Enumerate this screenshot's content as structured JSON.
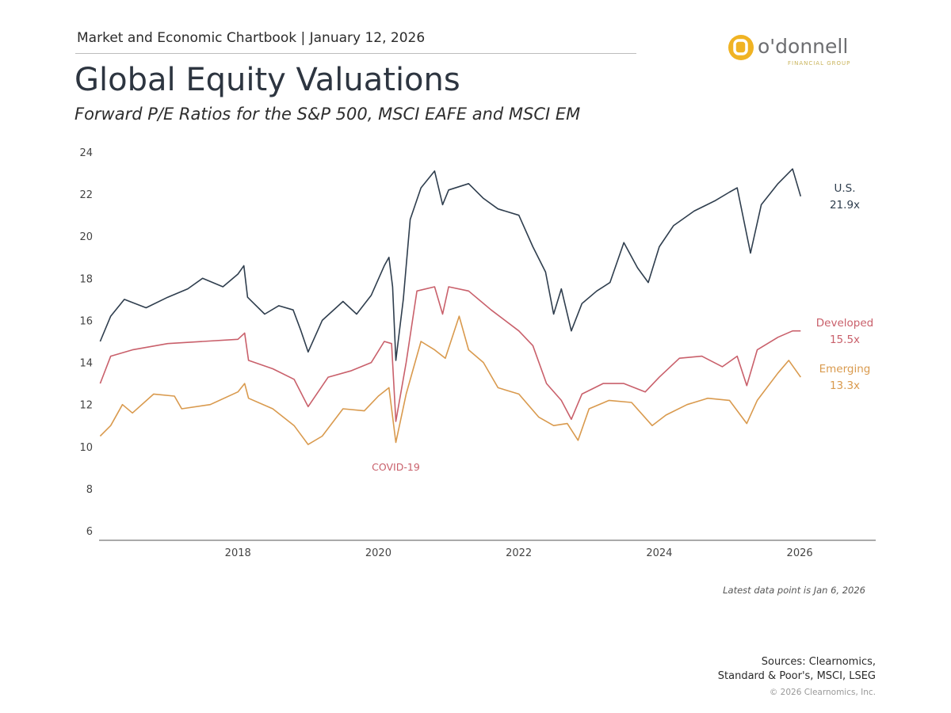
{
  "header": {
    "chartbook": "Market and Economic Chartbook | January 12, 2026"
  },
  "logo": {
    "text": "o'donnell",
    "subtext": "FINANCIAL GROUP",
    "colors": {
      "mark": "#f0b323",
      "text": "#6d6e71",
      "subtext": "#c9b35a"
    }
  },
  "title": "Global Equity Valuations",
  "subtitle": "Forward P/E Ratios for the S&P 500, MSCI EAFE and MSCI EM",
  "footer": {
    "latest": "Latest data point is Jan 6, 2026",
    "sources_line1": "Sources: Clearnomics,",
    "sources_line2": "Standard & Poor's, MSCI, LSEG",
    "copyright": "© 2026 Clearnomics, Inc."
  },
  "chart_data": {
    "type": "line",
    "title": "",
    "xlabel": "",
    "ylabel": "",
    "ylim": [
      6,
      24
    ],
    "xlim": [
      "2016-01-01",
      "2027-01-31"
    ],
    "yticks": [
      "6",
      "8",
      "10",
      "12",
      "14",
      "16",
      "18",
      "20",
      "22",
      "24"
    ],
    "xticks": [
      "2018",
      "2020",
      "2022",
      "2024",
      "2026"
    ],
    "grid": false,
    "annotations": [
      {
        "text": "COVID-19",
        "x": "2020-04-01",
        "color": "#c9606b"
      }
    ],
    "series": [
      {
        "name": "U.S.",
        "end_label": "21.9x",
        "color": "#2f3e4e",
        "points": [
          [
            "2016-01-15",
            15.0
          ],
          [
            "2016-03-10",
            16.2
          ],
          [
            "2016-05-20",
            17.0
          ],
          [
            "2016-09-10",
            16.6
          ],
          [
            "2017-01-01",
            17.1
          ],
          [
            "2017-04-15",
            17.5
          ],
          [
            "2017-07-01",
            18.0
          ],
          [
            "2017-10-15",
            17.6
          ],
          [
            "2018-01-01",
            18.2
          ],
          [
            "2018-02-01",
            18.6
          ],
          [
            "2018-02-20",
            17.1
          ],
          [
            "2018-05-20",
            16.3
          ],
          [
            "2018-08-01",
            16.7
          ],
          [
            "2018-10-15",
            16.5
          ],
          [
            "2018-11-25",
            15.5
          ],
          [
            "2019-01-01",
            14.5
          ],
          [
            "2019-03-15",
            16.0
          ],
          [
            "2019-07-01",
            16.9
          ],
          [
            "2019-09-10",
            16.3
          ],
          [
            "2019-11-25",
            17.2
          ],
          [
            "2020-02-01",
            18.6
          ],
          [
            "2020-02-25",
            19.0
          ],
          [
            "2020-03-15",
            17.6
          ],
          [
            "2020-04-01",
            14.1
          ],
          [
            "2020-05-10",
            17.0
          ],
          [
            "2020-06-15",
            20.8
          ],
          [
            "2020-08-10",
            22.3
          ],
          [
            "2020-10-20",
            23.1
          ],
          [
            "2020-12-01",
            21.5
          ],
          [
            "2021-01-01",
            22.2
          ],
          [
            "2021-04-15",
            22.5
          ],
          [
            "2021-07-01",
            21.8
          ],
          [
            "2021-09-15",
            21.3
          ],
          [
            "2022-01-01",
            21.0
          ],
          [
            "2022-03-15",
            19.5
          ],
          [
            "2022-05-20",
            18.3
          ],
          [
            "2022-07-01",
            16.3
          ],
          [
            "2022-08-10",
            17.5
          ],
          [
            "2022-10-01",
            15.5
          ],
          [
            "2022-11-25",
            16.8
          ],
          [
            "2023-02-10",
            17.4
          ],
          [
            "2023-04-20",
            17.8
          ],
          [
            "2023-07-01",
            19.7
          ],
          [
            "2023-09-10",
            18.5
          ],
          [
            "2023-11-05",
            17.8
          ],
          [
            "2024-01-01",
            19.5
          ],
          [
            "2024-03-15",
            20.5
          ],
          [
            "2024-07-01",
            21.2
          ],
          [
            "2024-10-20",
            21.7
          ],
          [
            "2025-01-01",
            22.1
          ],
          [
            "2025-02-10",
            22.3
          ],
          [
            "2025-04-20",
            19.2
          ],
          [
            "2025-06-15",
            21.5
          ],
          [
            "2025-09-10",
            22.5
          ],
          [
            "2025-11-25",
            23.2
          ],
          [
            "2026-01-06",
            21.9
          ]
        ]
      },
      {
        "name": "Developed",
        "end_label": "15.5x",
        "color": "#c9606b",
        "points": [
          [
            "2016-01-15",
            13.0
          ],
          [
            "2016-03-10",
            14.3
          ],
          [
            "2016-07-01",
            14.6
          ],
          [
            "2017-01-01",
            14.9
          ],
          [
            "2017-07-01",
            15.0
          ],
          [
            "2018-01-01",
            15.1
          ],
          [
            "2018-02-05",
            15.4
          ],
          [
            "2018-02-25",
            14.1
          ],
          [
            "2018-07-01",
            13.7
          ],
          [
            "2018-10-20",
            13.2
          ],
          [
            "2019-01-01",
            11.9
          ],
          [
            "2019-04-15",
            13.3
          ],
          [
            "2019-08-10",
            13.6
          ],
          [
            "2019-11-25",
            14.0
          ],
          [
            "2020-02-01",
            15.0
          ],
          [
            "2020-03-10",
            14.9
          ],
          [
            "2020-04-01",
            11.2
          ],
          [
            "2020-05-25",
            14.0
          ],
          [
            "2020-07-20",
            17.4
          ],
          [
            "2020-10-20",
            17.6
          ],
          [
            "2020-12-01",
            16.3
          ],
          [
            "2021-01-01",
            17.6
          ],
          [
            "2021-04-15",
            17.4
          ],
          [
            "2021-08-10",
            16.5
          ],
          [
            "2022-01-01",
            15.5
          ],
          [
            "2022-03-15",
            14.8
          ],
          [
            "2022-05-25",
            13.0
          ],
          [
            "2022-08-10",
            12.2
          ],
          [
            "2022-10-01",
            11.3
          ],
          [
            "2022-11-25",
            12.5
          ],
          [
            "2023-03-15",
            13.0
          ],
          [
            "2023-07-01",
            13.0
          ],
          [
            "2023-10-20",
            12.6
          ],
          [
            "2024-01-01",
            13.3
          ],
          [
            "2024-04-15",
            14.2
          ],
          [
            "2024-08-10",
            14.3
          ],
          [
            "2024-11-25",
            13.8
          ],
          [
            "2025-02-10",
            14.3
          ],
          [
            "2025-04-01",
            12.9
          ],
          [
            "2025-05-25",
            14.6
          ],
          [
            "2025-09-10",
            15.2
          ],
          [
            "2025-11-25",
            15.5
          ],
          [
            "2026-01-06",
            15.5
          ]
        ]
      },
      {
        "name": "Emerging",
        "end_label": "13.3x",
        "color": "#d99a4e",
        "points": [
          [
            "2016-01-15",
            10.5
          ],
          [
            "2016-03-10",
            11.0
          ],
          [
            "2016-05-10",
            12.0
          ],
          [
            "2016-07-01",
            11.6
          ],
          [
            "2016-10-20",
            12.5
          ],
          [
            "2017-02-05",
            12.4
          ],
          [
            "2017-03-15",
            11.8
          ],
          [
            "2017-08-10",
            12.0
          ],
          [
            "2018-01-01",
            12.6
          ],
          [
            "2018-02-05",
            13.0
          ],
          [
            "2018-02-25",
            12.3
          ],
          [
            "2018-07-01",
            11.8
          ],
          [
            "2018-10-20",
            11.0
          ],
          [
            "2019-01-01",
            10.1
          ],
          [
            "2019-03-15",
            10.5
          ],
          [
            "2019-07-01",
            11.8
          ],
          [
            "2019-10-20",
            11.7
          ],
          [
            "2020-01-01",
            12.4
          ],
          [
            "2020-02-25",
            12.8
          ],
          [
            "2020-04-01",
            10.2
          ],
          [
            "2020-05-25",
            12.5
          ],
          [
            "2020-08-10",
            15.0
          ],
          [
            "2020-10-20",
            14.6
          ],
          [
            "2020-12-15",
            14.2
          ],
          [
            "2021-02-25",
            16.2
          ],
          [
            "2021-04-15",
            14.6
          ],
          [
            "2021-07-01",
            14.0
          ],
          [
            "2021-09-15",
            12.8
          ],
          [
            "2022-01-01",
            12.5
          ],
          [
            "2022-04-15",
            11.4
          ],
          [
            "2022-07-01",
            11.0
          ],
          [
            "2022-09-10",
            11.1
          ],
          [
            "2022-11-05",
            10.3
          ],
          [
            "2023-01-01",
            11.8
          ],
          [
            "2023-04-15",
            12.2
          ],
          [
            "2023-08-10",
            12.1
          ],
          [
            "2023-11-25",
            11.0
          ],
          [
            "2024-02-05",
            11.5
          ],
          [
            "2024-05-25",
            12.0
          ],
          [
            "2024-09-10",
            12.3
          ],
          [
            "2025-01-01",
            12.2
          ],
          [
            "2025-04-01",
            11.1
          ],
          [
            "2025-05-25",
            12.2
          ],
          [
            "2025-09-10",
            13.5
          ],
          [
            "2025-11-05",
            14.1
          ],
          [
            "2026-01-06",
            13.3
          ]
        ]
      }
    ]
  }
}
